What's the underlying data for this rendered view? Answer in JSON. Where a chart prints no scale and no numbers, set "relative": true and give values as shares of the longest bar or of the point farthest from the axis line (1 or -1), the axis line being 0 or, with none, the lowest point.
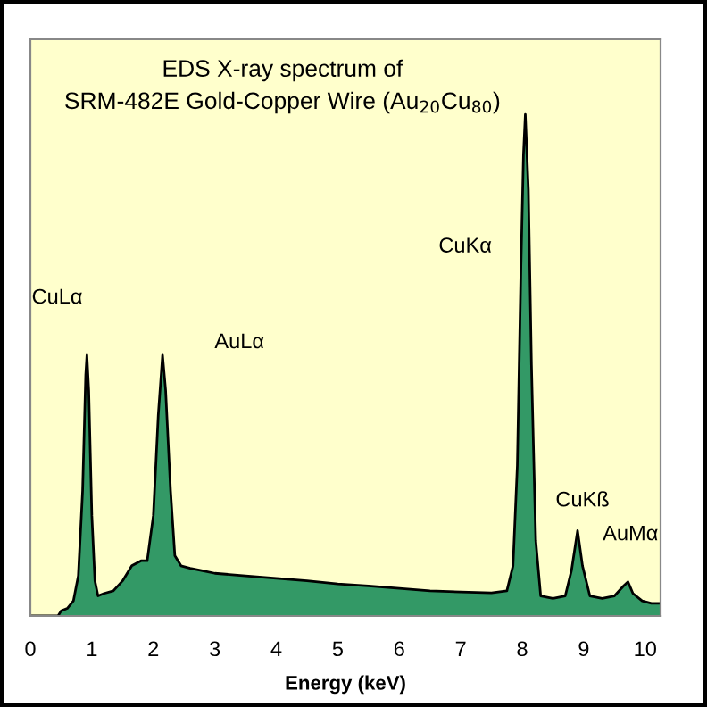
{
  "chart_data": {
    "type": "area",
    "title": "EDS X-ray spectrum of\nSRM-482E Gold-Copper Wire (Au$_{20}$Cu$_{80}$)",
    "xlabel": "Energy (keV)",
    "relative": true,
    "x": [
      0,
      0.45,
      0.5,
      0.6,
      0.7,
      0.78,
      0.85,
      0.9,
      0.92,
      0.95,
      1.0,
      1.05,
      1.1,
      1.2,
      1.35,
      1.5,
      1.65,
      1.8,
      1.9,
      2.0,
      2.08,
      2.15,
      2.2,
      2.28,
      2.35,
      2.45,
      2.6,
      2.8,
      3.0,
      3.5,
      4.0,
      4.5,
      5.0,
      5.5,
      6.0,
      6.5,
      7.0,
      7.5,
      7.75,
      7.85,
      7.92,
      7.98,
      8.02,
      8.05,
      8.1,
      8.15,
      8.22,
      8.3,
      8.5,
      8.7,
      8.8,
      8.9,
      8.98,
      9.1,
      9.3,
      9.5,
      9.65,
      9.72,
      9.8,
      9.95,
      10.1,
      10.25
    ],
    "series": [
      {
        "color": "#339966",
        "values": [
          0,
          0,
          0.01,
          0.015,
          0.03,
          0.08,
          0.25,
          0.48,
          0.52,
          0.45,
          0.2,
          0.07,
          0.04,
          0.045,
          0.05,
          0.07,
          0.1,
          0.11,
          0.11,
          0.2,
          0.4,
          0.52,
          0.45,
          0.25,
          0.12,
          0.1,
          0.095,
          0.09,
          0.085,
          0.08,
          0.075,
          0.07,
          0.064,
          0.06,
          0.055,
          0.05,
          0.048,
          0.046,
          0.05,
          0.1,
          0.3,
          0.7,
          0.92,
          1.0,
          0.85,
          0.5,
          0.15,
          0.04,
          0.035,
          0.04,
          0.09,
          0.17,
          0.1,
          0.04,
          0.035,
          0.04,
          0.06,
          0.068,
          0.045,
          0.03,
          0.025,
          0.025
        ]
      }
    ],
    "xlim": [
      0,
      10.25
    ],
    "xticks": [
      0,
      1,
      2,
      3,
      4,
      5,
      6,
      7,
      8,
      9,
      10
    ],
    "grid": false,
    "legend": false,
    "annotations": [
      {
        "text": "CuLα",
        "x": 0.92,
        "y": 0.52
      },
      {
        "text": "AuLα",
        "x": 2.15,
        "y": 0.52
      },
      "CuKα",
      {
        "text": "CuKß",
        "x": 8.9,
        "y": 0.17
      },
      {
        "text": "AuMα",
        "x": 9.72,
        "y": 0.068
      }
    ]
  }
}
